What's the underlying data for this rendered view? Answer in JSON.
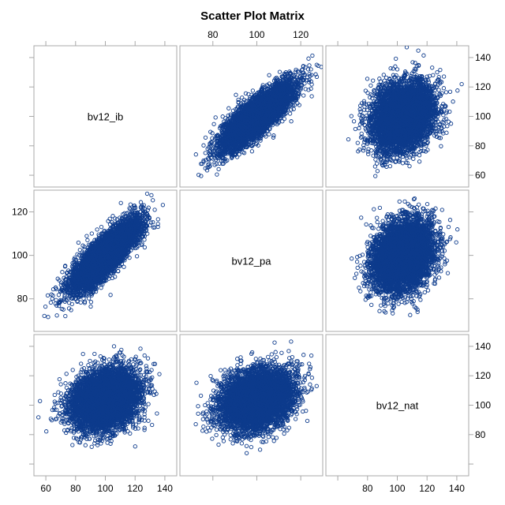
{
  "chart_data": {
    "type": "scatter",
    "title": "Scatter Plot Matrix",
    "variables": [
      "bv12_ib",
      "bv12_pa",
      "bv12_nat"
    ],
    "axes": {
      "bv12_ib": {
        "range": [
          52,
          148
        ],
        "ticks": [
          60,
          80,
          100,
          120,
          140
        ]
      },
      "bv12_pa": {
        "range": [
          65,
          130
        ],
        "ticks": [
          80,
          100,
          120
        ]
      },
      "bv12_nat": {
        "range": [
          52,
          148
        ],
        "ticks": [
          60,
          80,
          100,
          120,
          140
        ]
      }
    },
    "tick_label_placement": {
      "top": {
        "column": "bv12_pa",
        "ticks": [
          80,
          100,
          120
        ]
      },
      "bottom": [
        {
          "column": "bv12_ib",
          "ticks": [
            60,
            80,
            100,
            120,
            140
          ]
        },
        {
          "column": "bv12_nat",
          "ticks": [
            80,
            100,
            120,
            140
          ]
        }
      ],
      "left": {
        "row": "bv12_pa",
        "ticks": [
          80,
          100,
          120
        ]
      },
      "right": [
        {
          "row": "bv12_ib",
          "ticks": [
            60,
            80,
            100,
            120,
            140
          ]
        },
        {
          "row": "bv12_nat",
          "ticks": [
            80,
            100,
            120,
            140
          ]
        }
      ]
    },
    "distributions": {
      "bv12_ib": {
        "mean": 100,
        "sd": 11
      },
      "bv12_pa": {
        "mean": 100,
        "sd": 8
      },
      "bv12_nat": {
        "mean": 104,
        "sd": 10
      }
    },
    "correlations": {
      "bv12_ib__bv12_pa": 0.82,
      "bv12_ib__bv12_nat": 0.25,
      "bv12_pa__bv12_nat": 0.25
    },
    "points_per_panel": 6000,
    "marker": {
      "shape": "open-circle",
      "color": "#0d3b8c"
    },
    "grid": false,
    "legend": "none"
  }
}
